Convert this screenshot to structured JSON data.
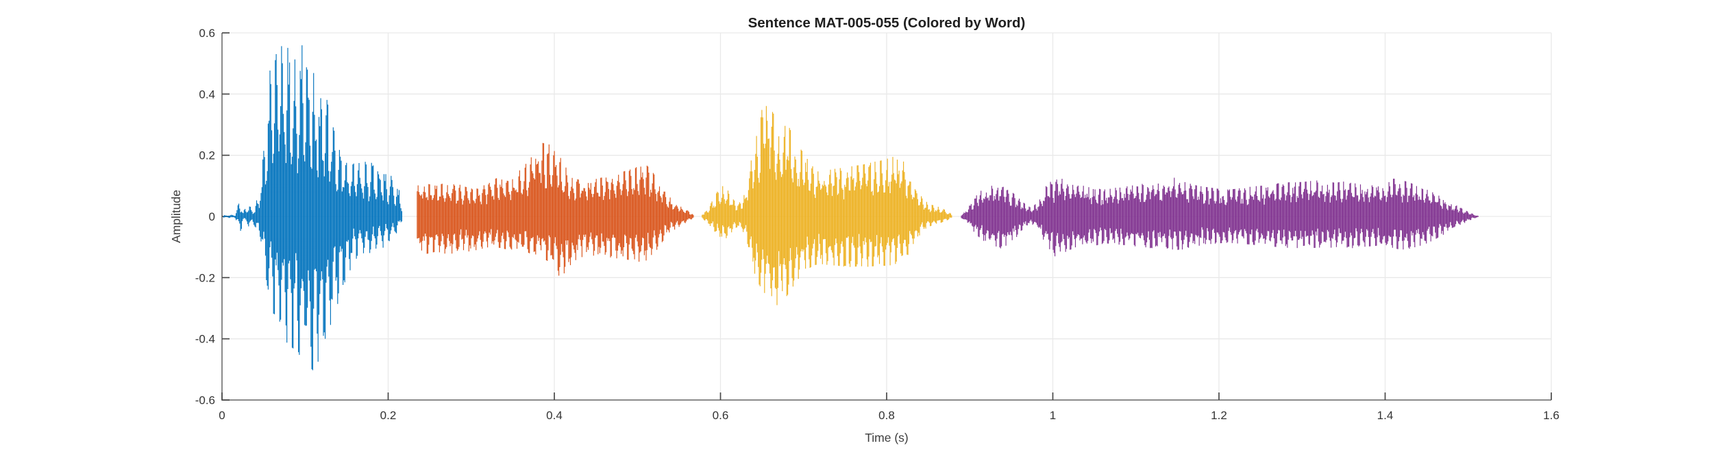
{
  "figure": {
    "background": "#ffffff"
  },
  "chart_data": {
    "type": "line",
    "subtype": "audio-waveform-colored-by-word",
    "title": "Sentence MAT-005-055 (Colored by Word)",
    "xlabel": "Time (s)",
    "ylabel": "Amplitude",
    "xlim": [
      0,
      1.6
    ],
    "ylim": [
      -0.6,
      0.6
    ],
    "xticks": [
      0,
      0.2,
      0.4,
      0.6,
      0.8,
      1,
      1.2,
      1.4,
      1.6
    ],
    "xtick_labels": [
      "0",
      "0.2",
      "0.4",
      "0.6",
      "0.8",
      "1",
      "1.2",
      "1.4",
      "1.6"
    ],
    "yticks": [
      -0.6,
      -0.4,
      -0.2,
      0,
      0.2,
      0.4,
      0.6
    ],
    "ytick_labels": [
      "-0.6",
      "-0.4",
      "-0.2",
      "0",
      "0.2",
      "0.4",
      "0.6"
    ],
    "grid": true,
    "legend": "none",
    "style": {
      "axis_color": "#8a8a8a",
      "tick_color": "#4a4a4a",
      "grid_color": "#e9e9e9",
      "label_color": "#3d3d3d",
      "title_color": "#1f1f1f",
      "background": "#ffffff"
    },
    "segments": [
      {
        "name": "word-1",
        "color": "#0072BD",
        "t_start": 0.002,
        "t_end": 0.217,
        "envelope": [
          [
            0.002,
            0.004,
            -0.004
          ],
          [
            0.016,
            0.006,
            -0.006
          ],
          [
            0.02,
            0.045,
            -0.03
          ],
          [
            0.022,
            0.055,
            -0.068
          ],
          [
            0.025,
            0.015,
            -0.012
          ],
          [
            0.029,
            0.03,
            -0.025
          ],
          [
            0.033,
            0.042,
            -0.035
          ],
          [
            0.037,
            0.02,
            -0.02
          ],
          [
            0.041,
            0.045,
            -0.04
          ],
          [
            0.045,
            0.09,
            -0.07
          ],
          [
            0.049,
            0.18,
            -0.12
          ],
          [
            0.053,
            0.32,
            -0.2
          ],
          [
            0.057,
            0.46,
            -0.27
          ],
          [
            0.061,
            0.55,
            -0.31
          ],
          [
            0.065,
            0.585,
            -0.34
          ],
          [
            0.07,
            0.57,
            -0.37
          ],
          [
            0.075,
            0.53,
            -0.4
          ],
          [
            0.08,
            0.555,
            -0.42
          ],
          [
            0.085,
            0.53,
            -0.43
          ],
          [
            0.09,
            0.5,
            -0.44
          ],
          [
            0.095,
            0.55,
            -0.46
          ],
          [
            0.1,
            0.585,
            -0.47
          ],
          [
            0.105,
            0.52,
            -0.49
          ],
          [
            0.11,
            0.47,
            -0.505
          ],
          [
            0.115,
            0.45,
            -0.48
          ],
          [
            0.12,
            0.43,
            -0.44
          ],
          [
            0.125,
            0.4,
            -0.4
          ],
          [
            0.13,
            0.33,
            -0.36
          ],
          [
            0.135,
            0.28,
            -0.32
          ],
          [
            0.14,
            0.24,
            -0.28
          ],
          [
            0.145,
            0.215,
            -0.245
          ],
          [
            0.15,
            0.19,
            -0.21
          ],
          [
            0.155,
            0.18,
            -0.17
          ],
          [
            0.16,
            0.17,
            -0.145
          ],
          [
            0.165,
            0.175,
            -0.13
          ],
          [
            0.17,
            0.185,
            -0.125
          ],
          [
            0.175,
            0.18,
            -0.12
          ],
          [
            0.18,
            0.175,
            -0.12
          ],
          [
            0.185,
            0.17,
            -0.115
          ],
          [
            0.19,
            0.165,
            -0.11
          ],
          [
            0.195,
            0.155,
            -0.1
          ],
          [
            0.2,
            0.14,
            -0.085
          ],
          [
            0.205,
            0.13,
            -0.07
          ],
          [
            0.21,
            0.115,
            -0.055
          ],
          [
            0.214,
            0.08,
            -0.035
          ],
          [
            0.217,
            0.03,
            -0.012
          ]
        ]
      },
      {
        "name": "word-2",
        "color": "#D95319",
        "t_start": 0.235,
        "t_end": 0.568,
        "envelope": [
          [
            0.235,
            0.1,
            -0.135
          ],
          [
            0.242,
            0.11,
            -0.125
          ],
          [
            0.25,
            0.105,
            -0.12
          ],
          [
            0.258,
            0.1,
            -0.115
          ],
          [
            0.266,
            0.108,
            -0.12
          ],
          [
            0.274,
            0.1,
            -0.125
          ],
          [
            0.282,
            0.108,
            -0.115
          ],
          [
            0.29,
            0.1,
            -0.11
          ],
          [
            0.298,
            0.092,
            -0.115
          ],
          [
            0.306,
            0.09,
            -0.11
          ],
          [
            0.314,
            0.1,
            -0.105
          ],
          [
            0.322,
            0.11,
            -0.1
          ],
          [
            0.33,
            0.125,
            -0.1
          ],
          [
            0.338,
            0.12,
            -0.105
          ],
          [
            0.346,
            0.115,
            -0.11
          ],
          [
            0.354,
            0.14,
            -0.105
          ],
          [
            0.362,
            0.16,
            -0.11
          ],
          [
            0.37,
            0.185,
            -0.12
          ],
          [
            0.378,
            0.215,
            -0.13
          ],
          [
            0.386,
            0.24,
            -0.135
          ],
          [
            0.394,
            0.235,
            -0.15
          ],
          [
            0.402,
            0.21,
            -0.185
          ],
          [
            0.408,
            0.19,
            -0.2
          ],
          [
            0.415,
            0.155,
            -0.175
          ],
          [
            0.422,
            0.125,
            -0.15
          ],
          [
            0.43,
            0.12,
            -0.135
          ],
          [
            0.438,
            0.125,
            -0.13
          ],
          [
            0.446,
            0.12,
            -0.128
          ],
          [
            0.454,
            0.125,
            -0.13
          ],
          [
            0.462,
            0.13,
            -0.132
          ],
          [
            0.47,
            0.135,
            -0.135
          ],
          [
            0.478,
            0.14,
            -0.138
          ],
          [
            0.486,
            0.15,
            -0.14
          ],
          [
            0.494,
            0.155,
            -0.145
          ],
          [
            0.502,
            0.165,
            -0.148
          ],
          [
            0.51,
            0.17,
            -0.145
          ],
          [
            0.516,
            0.155,
            -0.135
          ],
          [
            0.522,
            0.13,
            -0.115
          ],
          [
            0.528,
            0.105,
            -0.09
          ],
          [
            0.534,
            0.08,
            -0.07
          ],
          [
            0.54,
            0.06,
            -0.05
          ],
          [
            0.547,
            0.045,
            -0.04
          ],
          [
            0.554,
            0.03,
            -0.028
          ],
          [
            0.56,
            0.02,
            -0.018
          ],
          [
            0.565,
            0.012,
            -0.01
          ],
          [
            0.568,
            0.005,
            -0.004
          ]
        ]
      },
      {
        "name": "word-3",
        "color": "#EDB120",
        "t_start": 0.578,
        "t_end": 0.879,
        "envelope": [
          [
            0.578,
            0.008,
            -0.008
          ],
          [
            0.584,
            0.02,
            -0.018
          ],
          [
            0.59,
            0.05,
            -0.04
          ],
          [
            0.596,
            0.08,
            -0.06
          ],
          [
            0.602,
            0.1,
            -0.075
          ],
          [
            0.608,
            0.09,
            -0.07
          ],
          [
            0.614,
            0.06,
            -0.05
          ],
          [
            0.62,
            0.042,
            -0.038
          ],
          [
            0.626,
            0.05,
            -0.045
          ],
          [
            0.632,
            0.1,
            -0.09
          ],
          [
            0.638,
            0.2,
            -0.16
          ],
          [
            0.644,
            0.28,
            -0.21
          ],
          [
            0.65,
            0.35,
            -0.24
          ],
          [
            0.656,
            0.385,
            -0.26
          ],
          [
            0.662,
            0.345,
            -0.285
          ],
          [
            0.668,
            0.315,
            -0.29
          ],
          [
            0.674,
            0.3,
            -0.275
          ],
          [
            0.68,
            0.31,
            -0.26
          ],
          [
            0.686,
            0.27,
            -0.235
          ],
          [
            0.692,
            0.235,
            -0.21
          ],
          [
            0.698,
            0.215,
            -0.19
          ],
          [
            0.704,
            0.19,
            -0.175
          ],
          [
            0.712,
            0.16,
            -0.16
          ],
          [
            0.72,
            0.145,
            -0.155
          ],
          [
            0.728,
            0.15,
            -0.158
          ],
          [
            0.736,
            0.155,
            -0.16
          ],
          [
            0.744,
            0.158,
            -0.162
          ],
          [
            0.752,
            0.16,
            -0.165
          ],
          [
            0.76,
            0.165,
            -0.165
          ],
          [
            0.768,
            0.168,
            -0.162
          ],
          [
            0.776,
            0.172,
            -0.165
          ],
          [
            0.784,
            0.178,
            -0.163
          ],
          [
            0.792,
            0.182,
            -0.16
          ],
          [
            0.8,
            0.188,
            -0.162
          ],
          [
            0.808,
            0.195,
            -0.158
          ],
          [
            0.816,
            0.19,
            -0.15
          ],
          [
            0.822,
            0.175,
            -0.138
          ],
          [
            0.828,
            0.15,
            -0.118
          ],
          [
            0.834,
            0.11,
            -0.09
          ],
          [
            0.84,
            0.075,
            -0.06
          ],
          [
            0.846,
            0.052,
            -0.042
          ],
          [
            0.852,
            0.04,
            -0.032
          ],
          [
            0.858,
            0.035,
            -0.028
          ],
          [
            0.864,
            0.03,
            -0.022
          ],
          [
            0.87,
            0.022,
            -0.016
          ],
          [
            0.875,
            0.014,
            -0.01
          ],
          [
            0.879,
            0.006,
            -0.005
          ]
        ]
      },
      {
        "name": "word-4",
        "color": "#7E2F8E",
        "t_start": 0.89,
        "t_end": 1.512,
        "envelope": [
          [
            0.89,
            0.006,
            -0.006
          ],
          [
            0.896,
            0.02,
            -0.018
          ],
          [
            0.902,
            0.045,
            -0.04
          ],
          [
            0.908,
            0.07,
            -0.06
          ],
          [
            0.914,
            0.085,
            -0.075
          ],
          [
            0.92,
            0.095,
            -0.085
          ],
          [
            0.926,
            0.1,
            -0.092
          ],
          [
            0.932,
            0.105,
            -0.1
          ],
          [
            0.938,
            0.1,
            -0.105
          ],
          [
            0.944,
            0.092,
            -0.095
          ],
          [
            0.95,
            0.082,
            -0.085
          ],
          [
            0.956,
            0.068,
            -0.07
          ],
          [
            0.962,
            0.052,
            -0.05
          ],
          [
            0.968,
            0.038,
            -0.032
          ],
          [
            0.974,
            0.028,
            -0.024
          ],
          [
            0.98,
            0.042,
            -0.038
          ],
          [
            0.986,
            0.07,
            -0.065
          ],
          [
            0.992,
            0.1,
            -0.09
          ],
          [
            0.998,
            0.115,
            -0.115
          ],
          [
            1.004,
            0.12,
            -0.135
          ],
          [
            1.01,
            0.125,
            -0.125
          ],
          [
            1.016,
            0.115,
            -0.115
          ],
          [
            1.022,
            0.105,
            -0.108
          ],
          [
            1.028,
            0.1,
            -0.1
          ],
          [
            1.034,
            0.102,
            -0.098
          ],
          [
            1.04,
            0.098,
            -0.1
          ],
          [
            1.048,
            0.092,
            -0.098
          ],
          [
            1.056,
            0.09,
            -0.092
          ],
          [
            1.064,
            0.088,
            -0.088
          ],
          [
            1.072,
            0.092,
            -0.09
          ],
          [
            1.08,
            0.096,
            -0.092
          ],
          [
            1.09,
            0.1,
            -0.095
          ],
          [
            1.1,
            0.105,
            -0.098
          ],
          [
            1.11,
            0.108,
            -0.1
          ],
          [
            1.12,
            0.11,
            -0.105
          ],
          [
            1.13,
            0.118,
            -0.102
          ],
          [
            1.14,
            0.132,
            -0.106
          ],
          [
            1.148,
            0.125,
            -0.11
          ],
          [
            1.156,
            0.115,
            -0.108
          ],
          [
            1.164,
            0.108,
            -0.102
          ],
          [
            1.172,
            0.102,
            -0.098
          ],
          [
            1.18,
            0.098,
            -0.094
          ],
          [
            1.19,
            0.094,
            -0.09
          ],
          [
            1.2,
            0.09,
            -0.088
          ],
          [
            1.21,
            0.088,
            -0.086
          ],
          [
            1.22,
            0.09,
            -0.088
          ],
          [
            1.23,
            0.094,
            -0.09
          ],
          [
            1.24,
            0.098,
            -0.092
          ],
          [
            1.25,
            0.1,
            -0.096
          ],
          [
            1.26,
            0.104,
            -0.098
          ],
          [
            1.27,
            0.108,
            -0.1
          ],
          [
            1.28,
            0.11,
            -0.102
          ],
          [
            1.29,
            0.114,
            -0.104
          ],
          [
            1.3,
            0.112,
            -0.102
          ],
          [
            1.31,
            0.116,
            -0.104
          ],
          [
            1.32,
            0.118,
            -0.102
          ],
          [
            1.33,
            0.114,
            -0.104
          ],
          [
            1.34,
            0.11,
            -0.1
          ],
          [
            1.35,
            0.114,
            -0.1
          ],
          [
            1.36,
            0.11,
            -0.104
          ],
          [
            1.37,
            0.105,
            -0.1
          ],
          [
            1.38,
            0.1,
            -0.098
          ],
          [
            1.39,
            0.104,
            -0.096
          ],
          [
            1.4,
            0.11,
            -0.1
          ],
          [
            1.41,
            0.124,
            -0.104
          ],
          [
            1.418,
            0.12,
            -0.108
          ],
          [
            1.426,
            0.114,
            -0.108
          ],
          [
            1.434,
            0.106,
            -0.102
          ],
          [
            1.442,
            0.098,
            -0.096
          ],
          [
            1.45,
            0.088,
            -0.088
          ],
          [
            1.458,
            0.078,
            -0.078
          ],
          [
            1.466,
            0.066,
            -0.066
          ],
          [
            1.474,
            0.054,
            -0.054
          ],
          [
            1.482,
            0.042,
            -0.042
          ],
          [
            1.49,
            0.03,
            -0.03
          ],
          [
            1.498,
            0.018,
            -0.018
          ],
          [
            1.506,
            0.008,
            -0.008
          ],
          [
            1.512,
            0.002,
            -0.002
          ]
        ]
      }
    ]
  }
}
